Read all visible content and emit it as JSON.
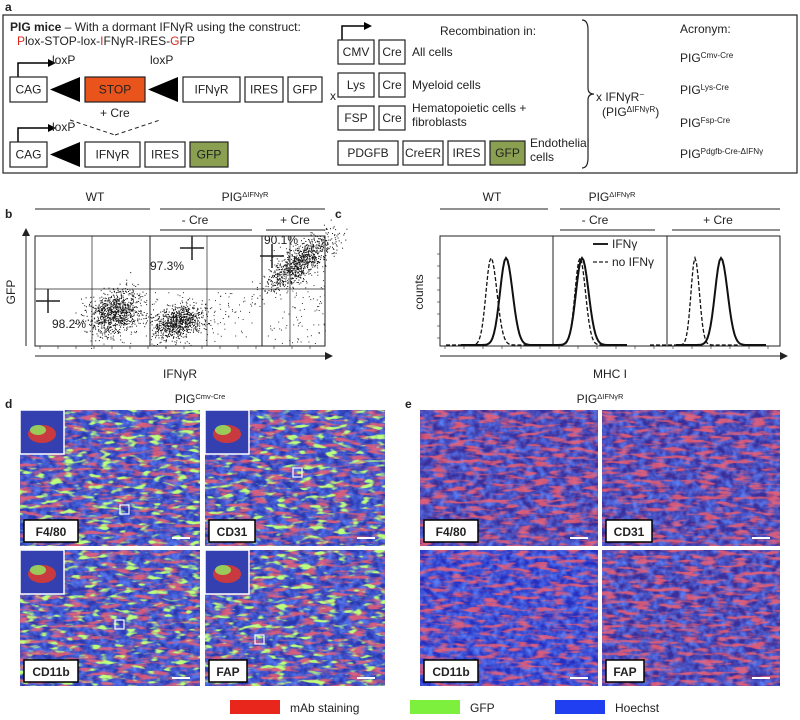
{
  "panel_a": {
    "label": "a",
    "title_bold": "PIG mice",
    "title_rest": " – With a dormant IFNγR using the construct:",
    "construct": [
      "P",
      "lox-STOP-lox-",
      "I",
      "FNγR-IRES-",
      "G",
      "FP"
    ],
    "loxp": "loxP",
    "plus_cre": "+ Cre",
    "cross_symbol": "x",
    "top_row": [
      "CAG",
      "STOP",
      "IFNγR",
      "IRES",
      "GFP"
    ],
    "bottom_row": [
      "CAG",
      "IFNγR",
      "IRES",
      "GFP"
    ],
    "recombination_title": "Recombination in:",
    "drivers": [
      {
        "parts": [
          "CMV",
          "Cre"
        ],
        "cells": [
          "All cells"
        ]
      },
      {
        "parts": [
          "Lys",
          "Cre"
        ],
        "cells": [
          "Myeloid cells"
        ]
      },
      {
        "parts": [
          "FSP",
          "Cre"
        ],
        "cells": [
          "Hematopoietic cells +",
          "fibroblasts"
        ]
      },
      {
        "parts": [
          "PDGFB",
          "CreER",
          "IRES",
          "GFP"
        ],
        "cells": [
          "Endothelial",
          "cells"
        ]
      }
    ],
    "cross": {
      "text": "x IFNγR",
      "sup": "−",
      "paren_open": "(PIG",
      "paren_sup": "ΔIFNγR",
      "paren_close": ")"
    },
    "acronym_title": "Acronym:",
    "acronyms": [
      {
        "base": "PIG",
        "sup": "Cmv-Cre"
      },
      {
        "base": "PIG",
        "sup": "Lys-Cre"
      },
      {
        "base": "PIG",
        "sup": "Fsp-Cre"
      },
      {
        "base": "PIG",
        "sup": "Pdgfb-Cre-ΔIFNγ"
      }
    ]
  },
  "panel_b": {
    "label": "b",
    "wt": "WT",
    "pig": {
      "base": "PIG",
      "sup": "ΔIFNγR"
    },
    "minus_cre": "- Cre",
    "plus_cre": "+ Cre",
    "y_label": "GFP",
    "x_label": "IFNγR",
    "percentages": [
      "98.2%",
      "97.3%",
      "90.1%"
    ]
  },
  "panel_c": {
    "label": "c",
    "wt": "WT",
    "pig": {
      "base": "PIG",
      "sup": "ΔIFNγR"
    },
    "minus_cre": "- Cre",
    "plus_cre": "+ Cre",
    "y_label": "counts",
    "x_label": "MHC I",
    "legend": [
      "IFNγ",
      "no IFNγ"
    ]
  },
  "panel_d": {
    "label": "d",
    "title": {
      "base": "PIG",
      "sup": "Cmv-Cre"
    },
    "images": [
      "F4/80",
      "CD31",
      "CD11b",
      "FAP"
    ]
  },
  "panel_e": {
    "label": "e",
    "title": {
      "base": "PIG",
      "sup": "ΔIFNγR"
    },
    "images": [
      "F4/80",
      "CD31",
      "CD11b",
      "FAP"
    ]
  },
  "legend": [
    "mAb staining",
    "GFP",
    "Hoechst"
  ]
}
